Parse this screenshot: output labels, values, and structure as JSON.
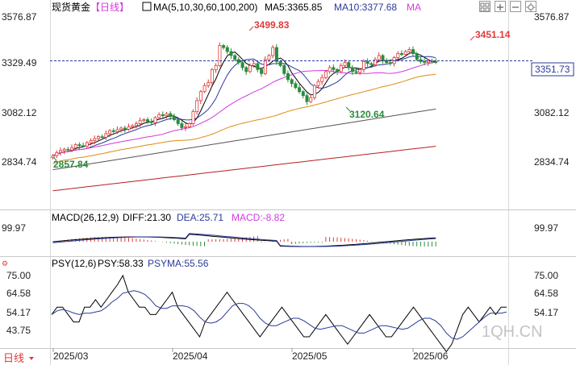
{
  "header": {
    "instrument": "现货黄金",
    "period": "【日线】",
    "ma_label": "MA(5,10,30,60,100,200)",
    "ma5": "MA5:3365.85",
    "ma10": "MA10:3377.68",
    "ma_more": "MA"
  },
  "macd_header": {
    "label": "MACD(26,12,9)",
    "diff": "DIFF:21.30",
    "dea": "DEA:25.71",
    "macd": "MACD:-8.82"
  },
  "psy_header": {
    "label": "PSY(12,6)",
    "psy": "PSY:58.33",
    "psyma": "PSYMA:55.56"
  },
  "price_badge": "3351.73",
  "period_button": "日线",
  "watermark": "1QH.CN",
  "colors": {
    "up": "#e03a3a",
    "down": "#2a8c3c",
    "ma5": "#000000",
    "ma10": "#2a3a9a",
    "ma30": "#d23adf",
    "ma60": "#e08a10",
    "ma100": "#555555",
    "ma200": "#b52020",
    "diff": "#000000",
    "dea": "#2a3a9a"
  },
  "chart_data": [
    {
      "type": "candlestick",
      "title": "现货黄金 日线",
      "y_ticks": [
        "3576.87",
        "3329.49",
        "3082.12",
        "2834.74"
      ],
      "ylim": [
        2760,
        3600
      ],
      "x_ticks": [
        "2025/03",
        "2025/04",
        "2025/05",
        "2025/06"
      ],
      "annotations": [
        {
          "text": "3499.83",
          "kind": "high"
        },
        {
          "text": "3451.14",
          "kind": "high"
        },
        {
          "text": "3120.64",
          "kind": "low"
        },
        {
          "text": "2857.84",
          "kind": "low"
        }
      ],
      "last_price": 3351.73
    },
    {
      "type": "line",
      "title": "MACD(26,12,9)",
      "y_ticks": [
        "99.97"
      ],
      "series": [
        {
          "name": "DIFF",
          "last": 21.3
        },
        {
          "name": "DEA",
          "last": 25.71
        },
        {
          "name": "MACD",
          "last": -8.82
        }
      ]
    },
    {
      "type": "line",
      "title": "PSY(12,6)",
      "y_ticks": [
        "75.00",
        "64.58",
        "54.17",
        "43.75"
      ],
      "ylim": [
        30,
        80
      ],
      "series": [
        {
          "name": "PSY",
          "last": 58.33
        },
        {
          "name": "PSYMA",
          "last": 55.56
        }
      ]
    }
  ]
}
